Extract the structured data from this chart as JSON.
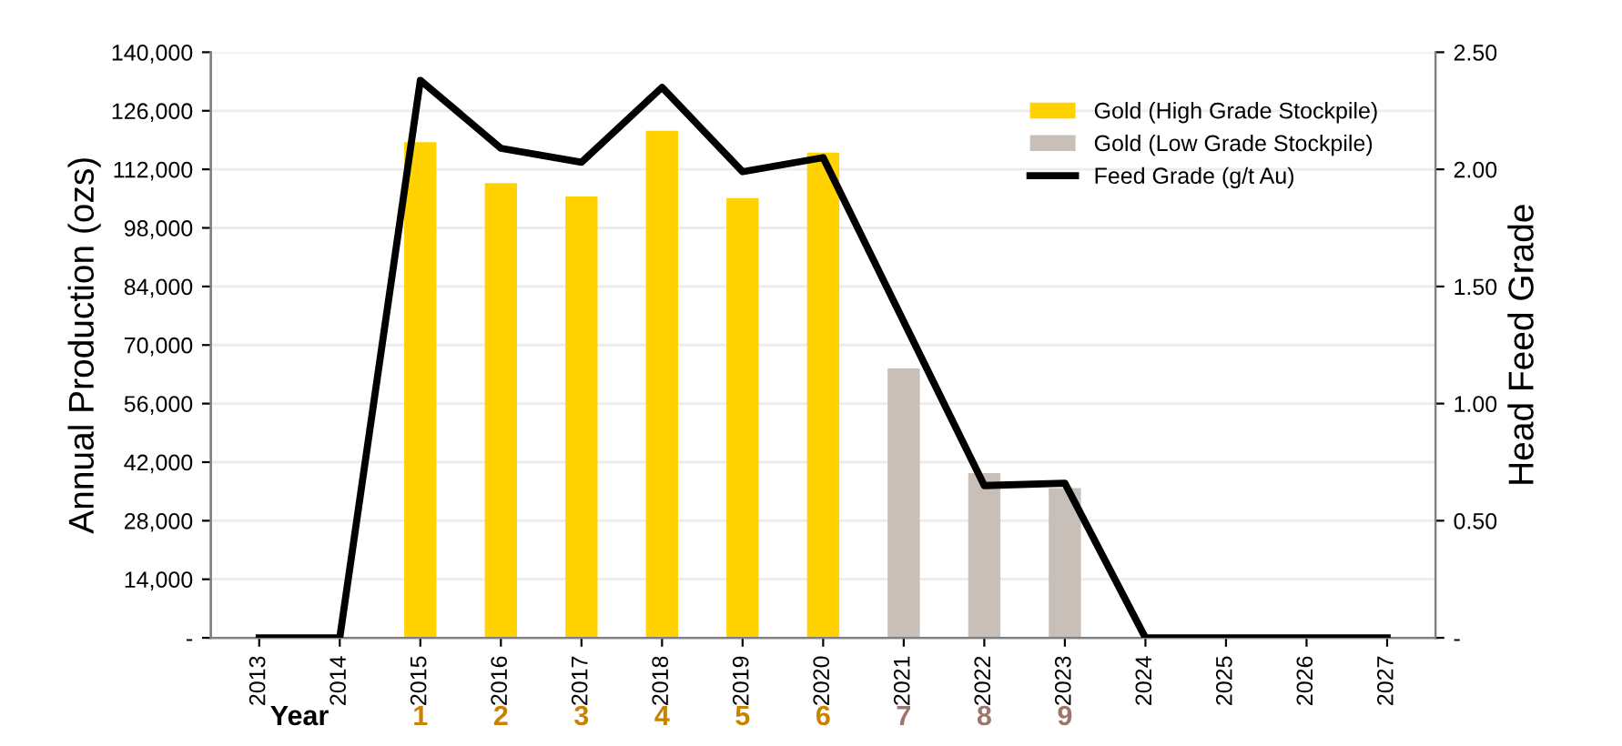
{
  "chart_data": {
    "type": "bar",
    "categories": [
      "2013",
      "2014",
      "2015",
      "2016",
      "2017",
      "2018",
      "2019",
      "2020",
      "2021",
      "2022",
      "2023",
      "2024",
      "2025",
      "2026",
      "2027"
    ],
    "ylabel": "Annual Production (ozs)",
    "y2label": "Head Feed Grade",
    "series": [
      {
        "name": "Gold (High Grade Stockpile)",
        "color": "#ffd200",
        "values": [
          null,
          null,
          118500,
          108700,
          105500,
          121200,
          105100,
          116000,
          null,
          null,
          null,
          null,
          null,
          null,
          null
        ]
      },
      {
        "name": "Gold (Low Grade Stockpile)",
        "color": "#c8bfb8",
        "values": [
          null,
          null,
          null,
          null,
          null,
          null,
          null,
          null,
          64400,
          39400,
          35800,
          null,
          null,
          null,
          null
        ]
      },
      {
        "name": "Feed Grade (g/t Au)",
        "type": "line",
        "axis": "y2",
        "color": "#000000",
        "values": [
          0,
          0,
          2.38,
          2.09,
          2.03,
          2.35,
          1.99,
          2.05,
          1.35,
          0.65,
          0.66,
          0,
          0,
          0,
          0
        ]
      }
    ],
    "ylim": [
      0,
      140000
    ],
    "yticks": [
      {
        "value": 0,
        "label": "-"
      },
      {
        "value": 14000,
        "label": "14,000"
      },
      {
        "value": 28000,
        "label": "28,000"
      },
      {
        "value": 42000,
        "label": "42,000"
      },
      {
        "value": 56000,
        "label": "56,000"
      },
      {
        "value": 70000,
        "label": "70,000"
      },
      {
        "value": 84000,
        "label": "84,000"
      },
      {
        "value": 98000,
        "label": "98,000"
      },
      {
        "value": 112000,
        "label": "112,000"
      },
      {
        "value": 126000,
        "label": "126,000"
      },
      {
        "value": 140000,
        "label": "140,000"
      }
    ],
    "y2lim": [
      0,
      2.5
    ],
    "y2ticks": [
      {
        "value": 0,
        "label": "-"
      },
      {
        "value": 0.5,
        "label": "0.50"
      },
      {
        "value": 1.0,
        "label": "1.00"
      },
      {
        "value": 1.5,
        "label": "1.50"
      },
      {
        "value": 2.0,
        "label": "2.00"
      },
      {
        "value": 2.5,
        "label": "2.50"
      }
    ],
    "grid": "y",
    "legend": "top right",
    "marker": "none",
    "line_style": "solid",
    "annotations": [
      "Year",
      "1",
      "2",
      "3",
      "4",
      "5",
      "6",
      "7",
      "8",
      "9"
    ]
  }
}
